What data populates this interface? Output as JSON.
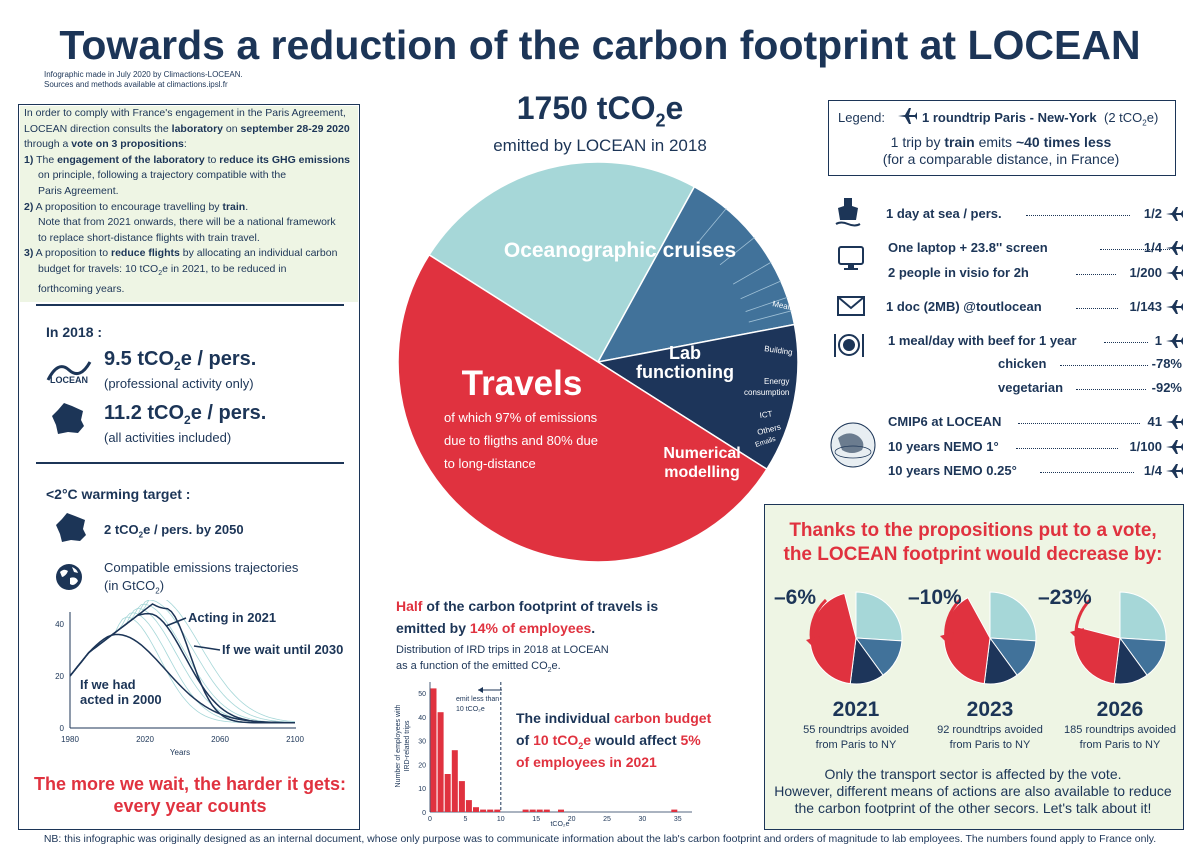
{
  "title": "Towards a reduction of the carbon footprint at LOCEAN",
  "credit_line1": "Infographic made in July 2020 by Climactions-LOCEAN.",
  "credit_line2": "Sources and methods available at climactions.ipsl.fr",
  "intro": {
    "p1a": "In order to comply with France's engagement in the Paris Agreement,",
    "p1b": "LOCEAN direction consults the ",
    "p1c": "laboratory",
    "p1d": " on ",
    "p1e": "september 28-29 2020",
    "p1f": "through a ",
    "p1g": "vote on 3 propositions",
    "p1h": ":",
    "i1n": "1)",
    "i1a": " The ",
    "i1b": "engagement of the laboratory",
    "i1c": " to ",
    "i1d": "reduce its GHG emissions",
    "i1e": "on principle, following a trajectory compatible with the",
    "i1f": "Paris Agreement.",
    "i2n": "2)",
    "i2a": " A proposition to encourage travelling by ",
    "i2b": "train",
    "i2c": ".",
    "i2d": "Note that from 2021 onwards, there will be a national framework",
    "i2e": "to replace short-distance flights with train travel.",
    "i3n": "3)",
    "i3a": " A proposition to ",
    "i3b": "reduce flights",
    "i3c": " by allocating an individual carbon",
    "i3d": "budget for travels: 10 tCO",
    "i3sub": "2",
    "i3e": "e in 2021, to be reduced in",
    "i3f": "forthcoming years."
  },
  "in2018": {
    "heading": "In 2018 :",
    "pers_a": "9.5 tCO",
    "pers_sub": "2",
    "pers_b": "e / pers.",
    "pers_note": "(professional activity only)",
    "fr_a": "11.2 tCO",
    "fr_sub": "2",
    "fr_b": "e / pers.",
    "fr_note": "(all activities included)",
    "logo_text": "LOCEAN"
  },
  "target": {
    "heading": "<2°C warming target :",
    "goal_a": "2 tCO",
    "goal_sub": "2",
    "goal_b": "e / pers. by 2050",
    "traj1": "Compatible emissions trajectories",
    "traj2a": "(in GtCO",
    "traj2sub": "2",
    "traj2b": ")",
    "conclusion1": "The more we wait, the harder it gets:",
    "conclusion2": "every year counts"
  },
  "traj_chart": {
    "x_ticks": [
      "1980",
      "2020",
      "2060",
      "2100"
    ],
    "y_ticks": [
      "0",
      "20",
      "40"
    ],
    "xlabel": "Years",
    "ann_2021": "Acting in 2021",
    "ann_2030": "If we wait until 2030",
    "ann_2000a": "If we had",
    "ann_2000b": "acted in 2000"
  },
  "total": {
    "value_a": "1750 tCO",
    "value_sub": "2",
    "value_b": "e",
    "subtitle": "emitted by LOCEAN in 2018"
  },
  "chart_data": {
    "type": "pie",
    "title": "1750 tCO2e emitted by LOCEAN in 2018",
    "slices": [
      {
        "name": "Travels",
        "value": 50,
        "color": "#e0323f",
        "note1": "of which 97% of emissions",
        "note2": "due to fligths and 80% due",
        "note3": "to long-distance"
      },
      {
        "name": "Oceanographic cruises",
        "value": 24,
        "color": "#a6d7d8"
      },
      {
        "name": "Lab functioning",
        "value": 14,
        "color": "#41729a",
        "sub": [
          "Meals",
          "Building",
          "Energy",
          "consumption",
          "ICT",
          "Others",
          "Emails"
        ]
      },
      {
        "name": "Numerical modelling",
        "value": 12,
        "color": "#1d355a"
      }
    ],
    "labels": {
      "travels": "Travels",
      "cruises": "Oceanographic cruises",
      "lab1": "Lab",
      "lab2": "functioning",
      "num1": "Numerical",
      "num2": "modelling"
    }
  },
  "legend": {
    "prefix": "Legend:",
    "plane_text": "1 roundtrip Paris - New-York",
    "plane_note_a": "(2 tCO",
    "plane_note_sub": "2",
    "plane_note_b": "e)",
    "train_a": "1 trip by ",
    "train_b": "train",
    "train_c": " emits ",
    "train_d": "~40 times less",
    "train_e": "(for a comparable distance, in France)"
  },
  "equivalents": [
    {
      "label": "1 day at sea / pers.",
      "value": "1/2"
    },
    {
      "label": "One laptop + 23.8'' screen",
      "value": "1/4"
    },
    {
      "label": "2 people in visio for 2h",
      "value": "1/200"
    },
    {
      "label": "1 doc (2MB) @toutlocean",
      "value": "1/143"
    },
    {
      "label": "1 meal/day with beef for 1 year",
      "value": "1"
    },
    {
      "label": "chicken",
      "value": "-78%"
    },
    {
      "label": "vegetarian",
      "value": "-92%"
    },
    {
      "label": "CMIP6 at LOCEAN",
      "value": "41"
    },
    {
      "label": "10 years NEMO 1°",
      "value": "1/100"
    },
    {
      "label": "10 years NEMO 0.25°",
      "value": "1/4"
    }
  ],
  "travel_half": {
    "l1a": "Half",
    "l1b": " of the carbon footprint of travels is",
    "l2a": "emitted by ",
    "l2b": "14% of employees",
    "l2c": ".",
    "dist1": "Distribution of IRD trips in 2018 at LOCEAN",
    "dist2a": "as a function of the emitted CO",
    "dist2sub": "2",
    "dist2b": "e.",
    "budget1a": "The individual ",
    "budget1b": "carbon budget",
    "budget2a": "of ",
    "budget2b": "10 tCO",
    "budget2sub": "2",
    "budget2c": "e",
    "budget2d": " would affect ",
    "budget2e": "5%",
    "budget3": "of employees in 2021"
  },
  "histogram": {
    "ylabel1": "Number of employees with",
    "ylabel2": "IRD-related trips",
    "xlabel": "tCO₂e",
    "y_ticks": [
      "0",
      "10",
      "20",
      "30",
      "40",
      "50"
    ],
    "x_ticks": [
      "0",
      "5",
      "10",
      "15",
      "20",
      "25",
      "30",
      "35"
    ],
    "emit_note1": "emit less than",
    "emit_note2": "10 tCO₂e",
    "bins": [
      {
        "x": 0.5,
        "count": 52
      },
      {
        "x": 1.5,
        "count": 42
      },
      {
        "x": 2.5,
        "count": 16
      },
      {
        "x": 3.5,
        "count": 26
      },
      {
        "x": 4.5,
        "count": 13
      },
      {
        "x": 5.5,
        "count": 5
      },
      {
        "x": 6.5,
        "count": 2
      },
      {
        "x": 7.5,
        "count": 1
      },
      {
        "x": 8.5,
        "count": 1
      },
      {
        "x": 9.5,
        "count": 1
      },
      {
        "x": 13.5,
        "count": 1
      },
      {
        "x": 14.5,
        "count": 1
      },
      {
        "x": 15.5,
        "count": 1
      },
      {
        "x": 16.5,
        "count": 1
      },
      {
        "x": 18.5,
        "count": 1
      },
      {
        "x": 34.5,
        "count": 1
      }
    ]
  },
  "propositions": {
    "head1": "Thanks to the propositions put to a vote,",
    "head2": "the LOCEAN footprint would decrease by:",
    "years": [
      {
        "pct": "–6%",
        "year": "2021",
        "note1": "55 roundtrips avoided",
        "note2": "from Paris to NY",
        "travels": 44
      },
      {
        "pct": "–10%",
        "year": "2023",
        "note1": "92 roundtrips avoided",
        "note2": "from Paris to NY",
        "travels": 40
      },
      {
        "pct": "–23%",
        "year": "2026",
        "note1": "185 roundtrips avoided",
        "note2": "from Paris to NY",
        "travels": 27
      }
    ],
    "foot1": "Only the transport sector is affected by the vote.",
    "foot2": "However, different means of actions are also available to reduce",
    "foot3": "the carbon footprint of the other secors. Let's talk about it!"
  },
  "nb": "NB: this infographic was originally designed as an internal document, whose only purpose was to communicate information about the lab's carbon footprint and orders of magnitude to lab employees. The numbers found apply to France only."
}
